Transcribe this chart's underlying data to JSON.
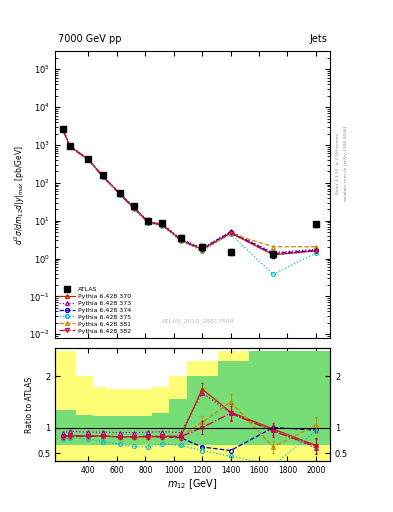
{
  "title_left": "7000 GeV pp",
  "title_right": "Jets",
  "ylabel_main": "d²σ/dm₁₂d|y|_max  [pb/GeV]",
  "ylabel_ratio": "Ratio to ATLAS",
  "xlabel": "m₁₂ [GeV]",
  "watermark": "ATLAS_2010_S8817804",
  "right_label": "Rivet 3.1.10, ≥ 3.1M events",
  "right_label2": "mcplots.cern.ch [arXiv:1306.3436]",
  "x_data": [
    220,
    270,
    400,
    500,
    620,
    720,
    820,
    920,
    1050,
    1200,
    1400,
    1700,
    2000
  ],
  "atlas_y": [
    2700,
    950,
    430,
    160,
    55,
    25,
    10,
    8.5,
    3.5,
    2.0,
    1.5,
    1.3,
    8.0
  ],
  "atlas_yerr": [
    250,
    90,
    40,
    15,
    6,
    3,
    1.5,
    1.2,
    0.6,
    0.35,
    0.25,
    0.25,
    1.2
  ],
  "py370_y": [
    2580,
    910,
    410,
    150,
    52,
    22,
    9.2,
    7.8,
    3.1,
    1.75,
    4.8,
    1.25,
    1.6
  ],
  "py373_y": [
    2650,
    945,
    425,
    155,
    54,
    23,
    9.6,
    8.2,
    3.3,
    1.9,
    5.2,
    1.45,
    1.75
  ],
  "py374_y": [
    2590,
    915,
    412,
    151,
    52,
    22,
    9.3,
    7.9,
    3.15,
    1.8,
    5.0,
    1.35,
    1.65
  ],
  "py375_y": [
    2500,
    880,
    395,
    143,
    49,
    20,
    8.7,
    7.3,
    2.9,
    1.6,
    4.4,
    0.38,
    1.4
  ],
  "py381_y": [
    2560,
    905,
    408,
    148,
    51,
    21,
    9.1,
    7.7,
    3.05,
    1.7,
    4.6,
    2.05,
    2.05
  ],
  "py382_y": [
    2570,
    908,
    409,
    149,
    51,
    21,
    9.1,
    7.7,
    3.05,
    1.72,
    4.7,
    1.28,
    1.58
  ],
  "ratio370": [
    0.82,
    0.84,
    0.83,
    0.83,
    0.82,
    0.82,
    0.82,
    0.83,
    0.83,
    1.75,
    1.3,
    0.97,
    0.65
  ],
  "ratio373": [
    0.9,
    0.93,
    0.91,
    0.91,
    0.9,
    0.9,
    0.91,
    0.92,
    0.9,
    1.68,
    1.28,
    0.95,
    0.6
  ],
  "ratio374": [
    0.83,
    0.84,
    0.83,
    0.83,
    0.82,
    0.82,
    0.83,
    0.82,
    0.8,
    0.62,
    0.55,
    1.0,
    0.95
  ],
  "ratio375": [
    0.78,
    0.8,
    0.78,
    0.72,
    0.67,
    0.63,
    0.62,
    0.68,
    0.65,
    0.55,
    0.44,
    0.27,
    0.93
  ],
  "ratio381": [
    0.82,
    0.84,
    0.83,
    0.83,
    0.82,
    0.82,
    0.82,
    0.82,
    0.82,
    1.1,
    1.5,
    0.62,
    1.05
  ],
  "ratio382": [
    0.82,
    0.84,
    0.83,
    0.83,
    0.82,
    0.82,
    0.82,
    0.82,
    0.82,
    1.0,
    1.28,
    0.93,
    0.63
  ],
  "ratio370_err": [
    0.04,
    0.04,
    0.04,
    0.04,
    0.04,
    0.04,
    0.04,
    0.04,
    0.06,
    0.12,
    0.15,
    0.12,
    0.15
  ],
  "ratio381_err": [
    0.04,
    0.04,
    0.04,
    0.04,
    0.04,
    0.04,
    0.04,
    0.04,
    0.06,
    0.12,
    0.15,
    0.12,
    0.15
  ],
  "ratio382_err": [
    0.04,
    0.04,
    0.04,
    0.04,
    0.04,
    0.04,
    0.04,
    0.04,
    0.06,
    0.12,
    0.15,
    0.12,
    0.15
  ],
  "color370": "#cc2200",
  "color373": "#aa00aa",
  "color374": "#0000cc",
  "color375": "#00bbcc",
  "color381": "#cc8800",
  "color382": "#cc0044",
  "x_band_edges": [
    165,
    240,
    310,
    430,
    530,
    640,
    740,
    850,
    970,
    1090,
    1310,
    1530,
    1810,
    2100
  ],
  "yellow_lo": [
    0.35,
    0.35,
    0.35,
    0.35,
    0.35,
    0.35,
    0.35,
    0.35,
    0.35,
    0.35,
    0.35,
    0.35,
    0.35
  ],
  "yellow_hi": [
    2.5,
    2.5,
    2.0,
    1.8,
    1.75,
    1.75,
    1.75,
    1.8,
    2.0,
    2.3,
    2.5,
    2.5,
    2.5
  ],
  "green_lo": [
    0.65,
    0.65,
    0.65,
    0.65,
    0.65,
    0.65,
    0.65,
    0.65,
    0.65,
    0.65,
    0.65,
    0.65,
    0.65
  ],
  "green_hi": [
    1.35,
    1.35,
    1.25,
    1.22,
    1.22,
    1.22,
    1.22,
    1.28,
    1.55,
    2.0,
    2.3,
    2.5,
    2.5
  ]
}
